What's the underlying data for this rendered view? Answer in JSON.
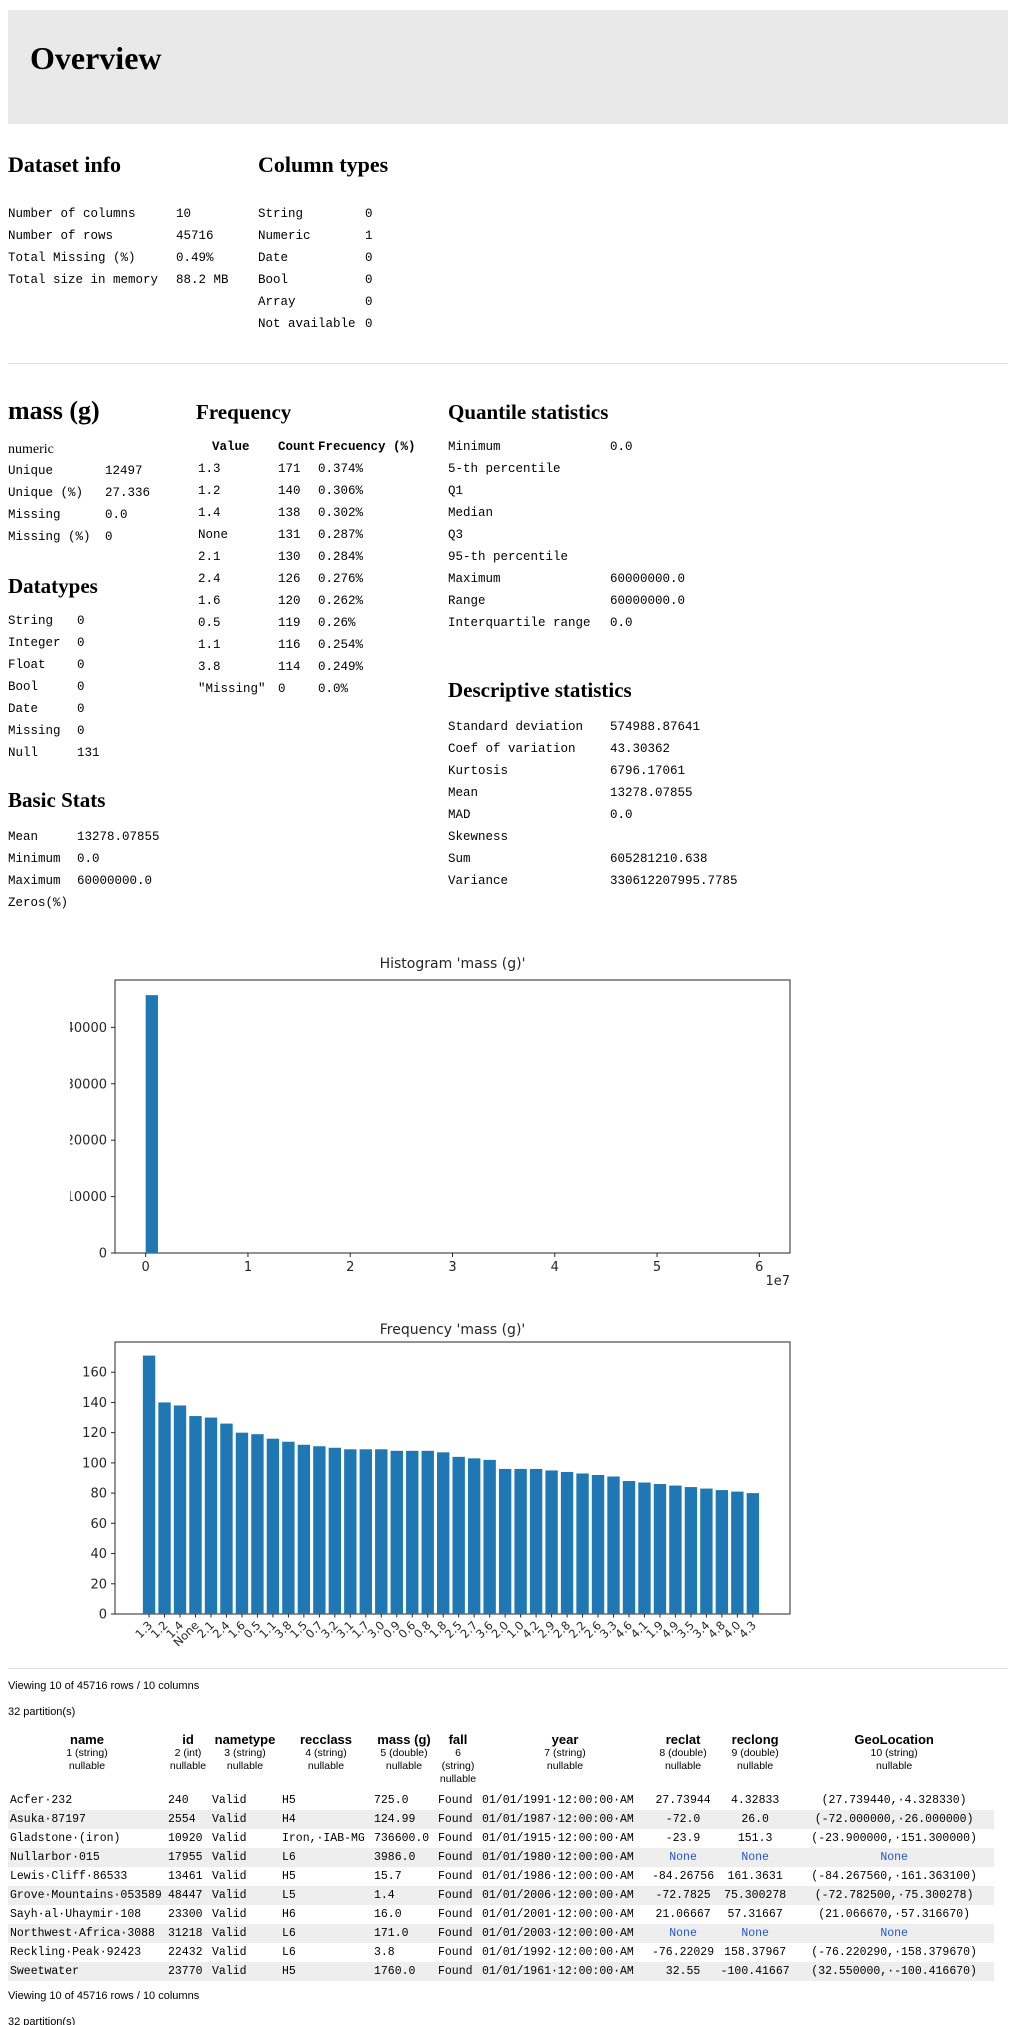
{
  "page": {
    "title": "Overview"
  },
  "colors": {
    "bar": "#1f77b4",
    "header_bg": "#e9e9e9",
    "row_stripe": "#eeeeee",
    "none_text": "#2255cc",
    "axis": "#262626"
  },
  "dataset_info": {
    "title": "Dataset info",
    "rows": [
      [
        "Number of columns",
        "10"
      ],
      [
        "Number of rows",
        "45716"
      ],
      [
        "Total Missing (%)",
        "0.49%"
      ],
      [
        "Total size in memory",
        "88.2 MB"
      ]
    ]
  },
  "column_types": {
    "title": "Column types",
    "rows": [
      [
        "String",
        "0"
      ],
      [
        "Numeric",
        "1"
      ],
      [
        "Date",
        "0"
      ],
      [
        "Bool",
        "0"
      ],
      [
        "Array",
        "0"
      ],
      [
        "Not available",
        "0"
      ]
    ]
  },
  "variable": {
    "name": "mass (g)",
    "type_label": "numeric",
    "summary_rows": [
      [
        "Unique",
        "12497"
      ],
      [
        "Unique (%)",
        "27.336"
      ],
      [
        "Missing",
        "0.0"
      ],
      [
        "Missing (%)",
        "0"
      ]
    ],
    "datatypes": {
      "title": "Datatypes",
      "rows": [
        [
          "String",
          "0"
        ],
        [
          "Integer",
          "0"
        ],
        [
          "Float",
          "0"
        ],
        [
          "Bool",
          "0"
        ],
        [
          "Date",
          "0"
        ],
        [
          "Missing",
          "0"
        ],
        [
          "Null",
          "131"
        ]
      ]
    },
    "basic_stats": {
      "title": "Basic Stats",
      "rows": [
        [
          "Mean",
          "13278.07855"
        ],
        [
          "Minimum",
          "0.0"
        ],
        [
          "Maximum",
          "60000000.0"
        ],
        [
          "Zeros(%)",
          ""
        ]
      ]
    },
    "frequency": {
      "title": "Frequency",
      "headers": [
        "Value",
        "Count",
        "Frecuency (%)"
      ],
      "rows": [
        [
          "1.3",
          "171",
          "0.374%"
        ],
        [
          "1.2",
          "140",
          "0.306%"
        ],
        [
          "1.4",
          "138",
          "0.302%"
        ],
        [
          "None",
          "131",
          "0.287%"
        ],
        [
          "2.1",
          "130",
          "0.284%"
        ],
        [
          "2.4",
          "126",
          "0.276%"
        ],
        [
          "1.6",
          "120",
          "0.262%"
        ],
        [
          "0.5",
          "119",
          "0.26%"
        ],
        [
          "1.1",
          "116",
          "0.254%"
        ],
        [
          "3.8",
          "114",
          "0.249%"
        ],
        [
          "\"Missing\"",
          "0",
          "0.0%"
        ]
      ]
    },
    "quantile_stats": {
      "title": "Quantile statistics",
      "rows": [
        [
          "Minimum",
          "0.0"
        ],
        [
          "5-th percentile",
          ""
        ],
        [
          "Q1",
          ""
        ],
        [
          "Median",
          ""
        ],
        [
          "Q3",
          ""
        ],
        [
          "95-th percentile",
          ""
        ],
        [
          "Maximum",
          "60000000.0"
        ],
        [
          "Range",
          "60000000.0"
        ],
        [
          "Interquartile range",
          "0.0"
        ]
      ]
    },
    "descriptive_stats": {
      "title": "Descriptive statistics",
      "rows": [
        [
          "Standard deviation",
          "574988.87641"
        ],
        [
          "Coef of variation",
          "43.30362"
        ],
        [
          "Kurtosis",
          "6796.17061"
        ],
        [
          "Mean",
          "13278.07855"
        ],
        [
          "MAD",
          "0.0"
        ],
        [
          "Skewness",
          ""
        ],
        [
          "Sum",
          "605281210.638"
        ],
        [
          "Variance",
          "330612207995.7785"
        ]
      ]
    }
  },
  "chart_data": [
    {
      "type": "bar",
      "subtype": "histogram",
      "title": "Histogram 'mass (g)'",
      "xlabel": "",
      "ylabel": "",
      "xlim": [
        -3000000,
        63000000
      ],
      "ylim": [
        0,
        48400
      ],
      "x_tick_values": [
        0,
        10000000,
        20000000,
        30000000,
        40000000,
        50000000,
        60000000
      ],
      "x_tick_labels": [
        "0",
        "1",
        "2",
        "3",
        "4",
        "5",
        "6"
      ],
      "x_offset_label": "1e7",
      "y_tick_values": [
        0,
        10000,
        20000,
        30000,
        40000
      ],
      "y_tick_labels": [
        "0",
        "10000",
        "20000",
        "30000",
        "40000"
      ],
      "grid": false,
      "legend": "none",
      "bar_color": "#1f77b4",
      "bins": [
        {
          "x0": 0,
          "x1": 1200000,
          "count": 45716
        }
      ]
    },
    {
      "type": "bar",
      "title": "Frequency 'mass (g)'",
      "xlabel": "",
      "ylabel": "",
      "ylim": [
        0,
        180
      ],
      "y_tick_values": [
        0,
        20,
        40,
        60,
        80,
        100,
        120,
        140,
        160
      ],
      "y_tick_labels": [
        "0",
        "20",
        "40",
        "60",
        "80",
        "100",
        "120",
        "140",
        "160"
      ],
      "grid": false,
      "legend": "none",
      "bar_color": "#1f77b4",
      "categories": [
        "1.3",
        "1.2",
        "1.4",
        "None",
        "2.1",
        "2.4",
        "1.6",
        "0.5",
        "1.1",
        "3.8",
        "1.5",
        "0.7",
        "3.2",
        "3.1",
        "1.7",
        "3.0",
        "0.9",
        "0.6",
        "0.8",
        "1.8",
        "2.5",
        "2.7",
        "3.6",
        "2.0",
        "1.0",
        "4.2",
        "2.9",
        "2.8",
        "2.2",
        "2.6",
        "3.3",
        "4.6",
        "4.1",
        "1.9",
        "4.9",
        "3.5",
        "3.4",
        "4.8",
        "4.0",
        "4.3"
      ],
      "values": [
        171,
        140,
        138,
        131,
        130,
        126,
        120,
        119,
        116,
        114,
        112,
        111,
        110,
        109,
        109,
        109,
        108,
        108,
        108,
        107,
        104,
        103,
        102,
        96,
        96,
        96,
        95,
        94,
        93,
        92,
        91,
        88,
        87,
        86,
        85,
        84,
        83,
        82,
        81,
        80
      ]
    }
  ],
  "sample_table": {
    "viewing_label": "Viewing 10 of 45716 rows / 10 columns",
    "partitions_label": "32 partition(s)",
    "columns": [
      {
        "name": "name",
        "sub1": "1 (string)",
        "sub2": "nullable"
      },
      {
        "name": "id",
        "sub1": "2 (int)",
        "sub2": "nullable"
      },
      {
        "name": "nametype",
        "sub1": "3 (string)",
        "sub2": "nullable"
      },
      {
        "name": "recclass",
        "sub1": "4 (string)",
        "sub2": "nullable"
      },
      {
        "name": "mass (g)",
        "sub1": "5 (double)",
        "sub2": "nullable"
      },
      {
        "name": "fall",
        "sub1": "6 (string)",
        "sub2": "nullable"
      },
      {
        "name": "year",
        "sub1": "7 (string)",
        "sub2": "nullable"
      },
      {
        "name": "reclat",
        "sub1": "8 (double)",
        "sub2": "nullable"
      },
      {
        "name": "reclong",
        "sub1": "9 (double)",
        "sub2": "nullable"
      },
      {
        "name": "GeoLocation",
        "sub1": "10 (string)",
        "sub2": "nullable"
      }
    ],
    "rows": [
      [
        "Acfer·232",
        "240",
        "Valid",
        "H5",
        "725.0",
        "Found",
        "01/01/1991·12:00:00·AM",
        "27.73944",
        "4.32833",
        "(27.739440,·4.328330)"
      ],
      [
        "Asuka·87197",
        "2554",
        "Valid",
        "H4",
        "124.99",
        "Found",
        "01/01/1987·12:00:00·AM",
        "-72.0",
        "26.0",
        "(-72.000000,·26.000000)"
      ],
      [
        "Gladstone·(iron)",
        "10920",
        "Valid",
        "Iron,·IAB-MG",
        "736600.0",
        "Found",
        "01/01/1915·12:00:00·AM",
        "-23.9",
        "151.3",
        "(-23.900000,·151.300000)"
      ],
      [
        "Nullarbor·015",
        "17955",
        "Valid",
        "L6",
        "3986.0",
        "Found",
        "01/01/1980·12:00:00·AM",
        "None",
        "None",
        "None"
      ],
      [
        "Lewis·Cliff·86533",
        "13461",
        "Valid",
        "H5",
        "15.7",
        "Found",
        "01/01/1986·12:00:00·AM",
        "-84.26756",
        "161.3631",
        "(-84.267560,·161.363100)"
      ],
      [
        "Grove·Mountains·053589",
        "48447",
        "Valid",
        "L5",
        "1.4",
        "Found",
        "01/01/2006·12:00:00·AM",
        "-72.7825",
        "75.300278",
        "(-72.782500,·75.300278)"
      ],
      [
        "Sayh·al·Uhaymir·108",
        "23300",
        "Valid",
        "H6",
        "16.0",
        "Found",
        "01/01/2001·12:00:00·AM",
        "21.06667",
        "57.31667",
        "(21.066670,·57.316670)"
      ],
      [
        "Northwest·Africa·3088",
        "31218",
        "Valid",
        "L6",
        "171.0",
        "Found",
        "01/01/2003·12:00:00·AM",
        "None",
        "None",
        "None"
      ],
      [
        "Reckling·Peak·92423",
        "22432",
        "Valid",
        "L6",
        "3.8",
        "Found",
        "01/01/1992·12:00:00·AM",
        "-76.22029",
        "158.37967",
        "(-76.220290,·158.379670)"
      ],
      [
        "Sweetwater",
        "23770",
        "Valid",
        "H5",
        "1760.0",
        "Found",
        "01/01/1961·12:00:00·AM",
        "32.55",
        "-100.41667",
        "(32.550000,·-100.416670)"
      ]
    ]
  },
  "footer": {
    "viewing_label": "Viewing 10 of 45716 rows / 10 columns",
    "partitions_label": "32 partition(s)"
  }
}
